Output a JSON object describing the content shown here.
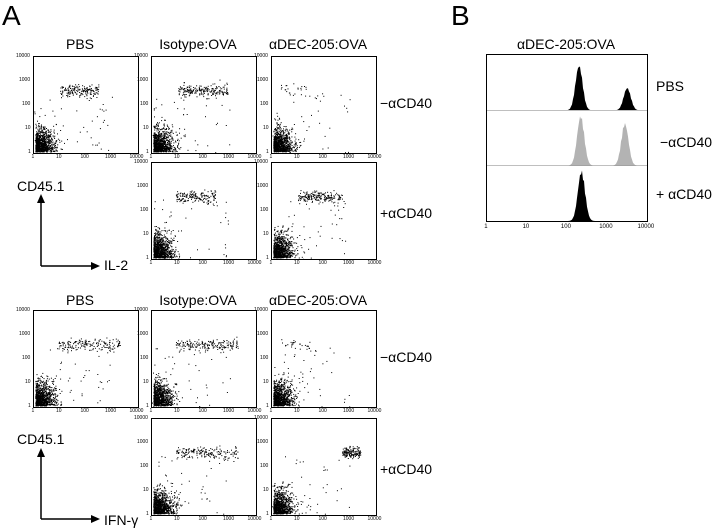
{
  "panels": {
    "a_letter": "A",
    "b_letter": "B"
  },
  "panel_a": {
    "col_titles": [
      "PBS",
      "Isotype:OVA",
      "αDEC-205:OVA"
    ],
    "row_labels": [
      "−αCD40",
      "+αCD40"
    ],
    "y_axis_label": "CD45.1",
    "top_x_axis_label": "IL-2",
    "bottom_x_axis_label": "IFN-γ",
    "y_ticks": [
      "10000",
      "1000",
      "100",
      "10",
      "1"
    ],
    "x_ticks": [
      "1",
      "10",
      "100",
      "1000",
      "10000"
    ]
  },
  "panel_b": {
    "title": "αDEC-205:OVA",
    "row_labels": [
      "PBS",
      "−αCD40",
      "+ αCD40"
    ],
    "x_ticks": [
      "1",
      "10",
      "100",
      "1000",
      "10000"
    ]
  },
  "colors": {
    "dot": "#000000",
    "hist_black": "#000000",
    "hist_gray": "#b3b3b3"
  },
  "chart_data": [
    {
      "type": "scatter",
      "group": "IL-2",
      "cells": [
        {
          "row": "−αCD40",
          "col": "PBS",
          "high_x_range": [
            10,
            300
          ],
          "high_count": 180
        },
        {
          "row": "−αCD40",
          "col": "Isotype:OVA",
          "high_x_range": [
            10,
            800
          ],
          "high_count": 220
        },
        {
          "row": "−αCD40",
          "col": "αDEC-205:OVA",
          "high_x_range": [
            2,
            20
          ],
          "high_count": 25
        },
        {
          "row": "+αCD40",
          "col": "Isotype:OVA",
          "high_x_range": [
            8,
            300
          ],
          "high_count": 170
        },
        {
          "row": "+αCD40",
          "col": "αDEC-205:OVA",
          "high_x_range": [
            10,
            500
          ],
          "high_count": 200
        }
      ],
      "xscale": "log",
      "yscale": "log",
      "xlim": [
        1,
        10000
      ],
      "ylim": [
        1,
        10000
      ]
    },
    {
      "type": "scatter",
      "group": "IFN-γ",
      "cells": [
        {
          "row": "−αCD40",
          "col": "PBS",
          "high_x_range": [
            8,
            2000
          ],
          "high_count": 180
        },
        {
          "row": "−αCD40",
          "col": "Isotype:OVA",
          "high_x_range": [
            8,
            2000
          ],
          "high_count": 190
        },
        {
          "row": "−αCD40",
          "col": "αDEC-205:OVA",
          "high_x_range": [
            2,
            30
          ],
          "high_count": 30
        },
        {
          "row": "+αCD40",
          "col": "Isotype:OVA",
          "high_x_range": [
            8,
            2000
          ],
          "high_count": 180
        },
        {
          "row": "+αCD40",
          "col": "αDEC-205:OVA",
          "high_x_range": [
            500,
            2500
          ],
          "high_count": 160
        }
      ],
      "xscale": "log",
      "yscale": "log",
      "xlim": [
        1,
        10000
      ],
      "ylim": [
        1,
        10000
      ]
    },
    {
      "type": "area",
      "title": "αDEC-205:OVA",
      "xscale": "log",
      "xlim": [
        1,
        10000
      ],
      "series": [
        {
          "name": "PBS",
          "color": "#000000",
          "peaks": [
            {
              "x": 200,
              "h": 0.9
            },
            {
              "x": 3200,
              "h": 0.45
            }
          ]
        },
        {
          "name": "−αCD40",
          "color": "#b3b3b3",
          "peaks": [
            {
              "x": 220,
              "h": 1.0
            },
            {
              "x": 2800,
              "h": 0.85
            }
          ]
        },
        {
          "name": "+ αCD40",
          "color": "#000000",
          "peaks": [
            {
              "x": 230,
              "h": 1.0
            }
          ]
        }
      ]
    }
  ]
}
